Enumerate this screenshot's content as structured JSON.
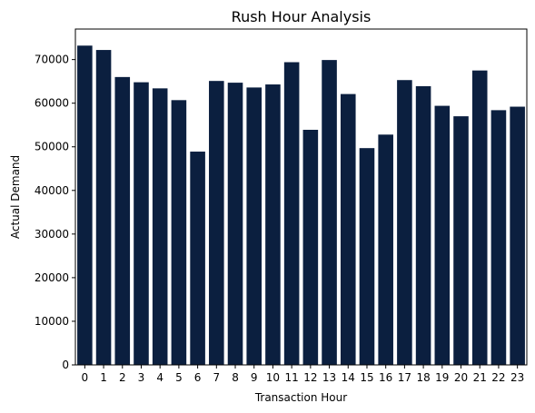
{
  "chart_data": {
    "type": "bar",
    "title": "Rush Hour Analysis",
    "xlabel": "Transaction Hour",
    "ylabel": "Actual Demand",
    "categories": [
      "0",
      "1",
      "2",
      "3",
      "4",
      "5",
      "6",
      "7",
      "8",
      "9",
      "10",
      "11",
      "12",
      "13",
      "14",
      "15",
      "16",
      "17",
      "18",
      "19",
      "20",
      "21",
      "22",
      "23"
    ],
    "values": [
      73200,
      72200,
      66000,
      64800,
      63400,
      60700,
      48900,
      65100,
      64700,
      63600,
      64300,
      69400,
      53900,
      69900,
      62100,
      49700,
      52800,
      65300,
      63900,
      59400,
      57000,
      67500,
      58400,
      59200
    ],
    "ylim": [
      0,
      77000
    ],
    "yticks": [
      0,
      10000,
      20000,
      30000,
      40000,
      50000,
      60000,
      70000
    ],
    "bar_color": "#0b1f3f",
    "grid": false,
    "legend": "none"
  }
}
